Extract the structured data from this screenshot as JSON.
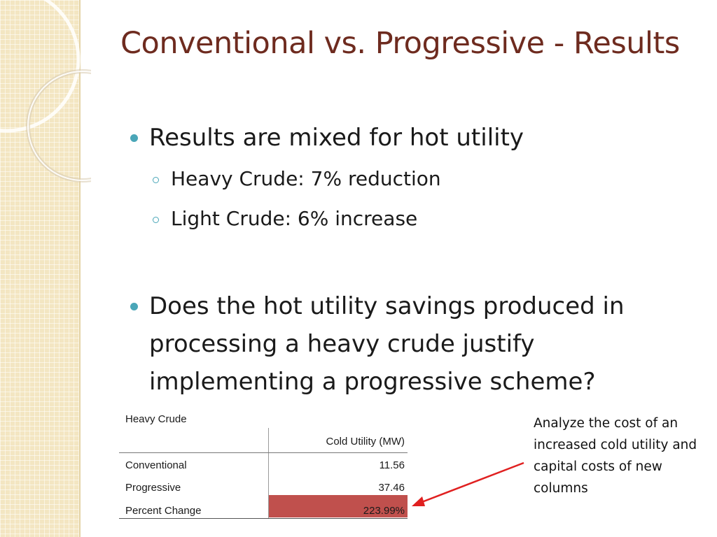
{
  "slide": {
    "title": "Conventional vs. Progressive - Results",
    "bullets": [
      {
        "text": "Results are mixed for hot utility",
        "sub": [
          "Heavy Crude: 7% reduction",
          "Light Crude: 6% increase"
        ]
      },
      {
        "text": "Does the hot utility savings produced in processing a heavy crude justify implementing a progressive scheme?",
        "sub": []
      }
    ],
    "table": {
      "caption": "Heavy Crude",
      "column_header": "Cold Utility (MW)",
      "rows": [
        {
          "label": "Conventional",
          "value": "11.56"
        },
        {
          "label": "Progressive",
          "value": "37.46"
        },
        {
          "label": "Percent Change",
          "value": "223.99%"
        }
      ],
      "highlight_color": "#c0504d"
    },
    "note": "Analyze the cost of an increased cold utility and capital costs of new columns",
    "colors": {
      "title": "#6e2b1f",
      "bullet": "#4aa6b8",
      "arrow": "#e02020",
      "strip": "#f3e6c2"
    }
  }
}
